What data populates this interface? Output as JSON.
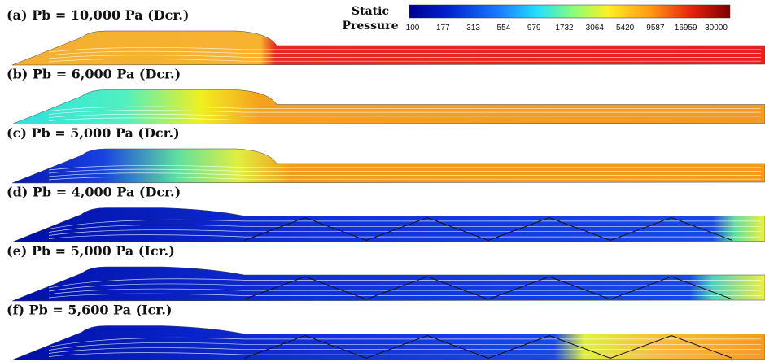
{
  "colorbar": {
    "title_lines": [
      "Static",
      "Pressure"
    ],
    "labels": [
      100,
      177,
      313,
      554,
      979,
      1732,
      3064,
      5420,
      9587,
      16959,
      30000
    ]
  },
  "panels": [
    {
      "label": "(a) Pb = 10,000 Pa (Dcr.)"
    },
    {
      "label": "(b) Pb = 6,000 Pa (Dcr.)"
    },
    {
      "label": "(c) Pb = 5,000 Pa (Dcr.)"
    },
    {
      "label": "(d) Pb = 4,000 Pa (Dcr.)"
    },
    {
      "label": "(e) Pb = 5,000 Pa (Icr.)"
    },
    {
      "label": "(f) Pb = 5,600 Pa (Icr.)"
    }
  ]
}
